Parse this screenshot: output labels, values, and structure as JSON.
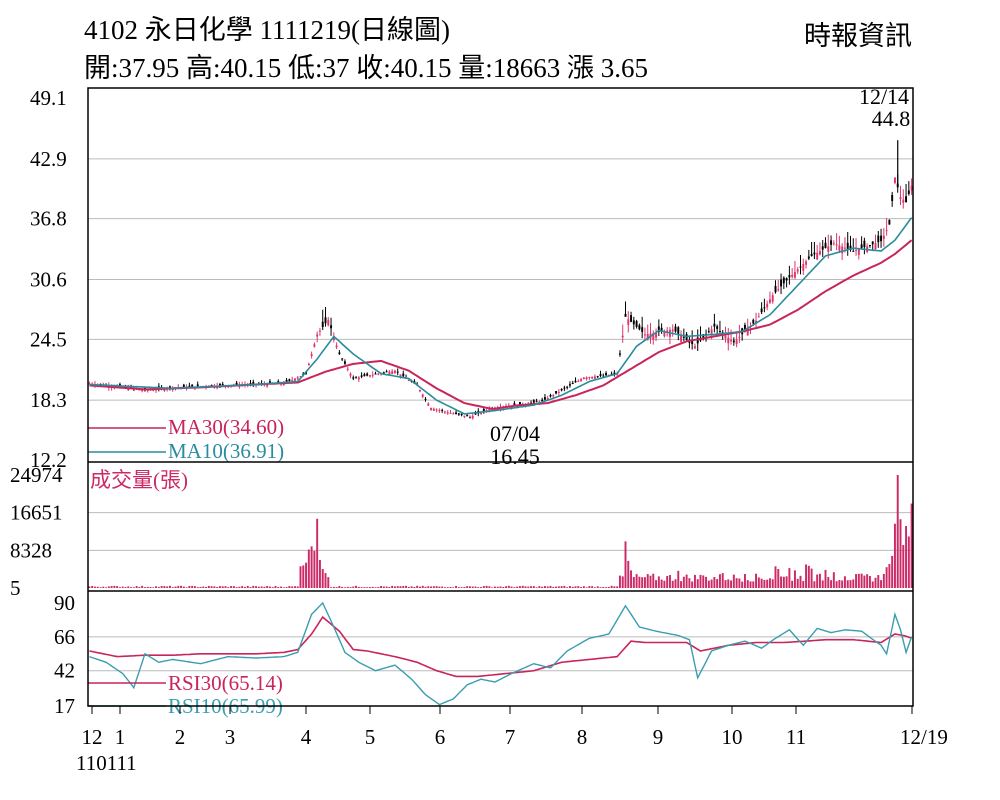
{
  "header": {
    "title": "4102  永日化學 1111219(日線圖)",
    "ohlc": "開:37.95 高:40.15 低:37 收:40.15 量:18663 漲 3.65",
    "source": "時報資訊"
  },
  "colors": {
    "up": "#e0356b",
    "down": "#000000",
    "ma30": "#c8255a",
    "ma10": "#2a8c9e",
    "volume": "#cc2a66",
    "rsi30": "#c8255a",
    "rsi10": "#3a9db0",
    "grid": "#bbbbbb"
  },
  "chart_data": [
    {
      "type": "candlestick",
      "panel": "price",
      "ylim": [
        12.2,
        49.1
      ],
      "yticks": [
        "49.1",
        "42.9",
        "36.8",
        "30.6",
        "24.5",
        "18.3",
        "12.2"
      ],
      "xticks": [
        "12",
        "1",
        "2",
        "3",
        "4",
        "5",
        "6",
        "7",
        "8",
        "9",
        "10",
        "11",
        "12/19"
      ],
      "xtick_sub": "110111",
      "annotations": [
        {
          "date": "12/14",
          "value": "44.8",
          "kind": "high"
        },
        {
          "date": "07/04",
          "value": "16.45",
          "kind": "low"
        }
      ],
      "legend": [
        {
          "label": "MA30(34.60)",
          "color": "#c8255a"
        },
        {
          "label": "MA10(36.91)",
          "color": "#2a8c9e"
        }
      ],
      "close_keypoints": [
        [
          0,
          20.0
        ],
        [
          10,
          19.7
        ],
        [
          20,
          19.3
        ],
        [
          30,
          19.6
        ],
        [
          45,
          19.8
        ],
        [
          60,
          19.9
        ],
        [
          70,
          20.0
        ],
        [
          78,
          21.0
        ],
        [
          82,
          25.0
        ],
        [
          86,
          26.5
        ],
        [
          90,
          23.0
        ],
        [
          95,
          20.5
        ],
        [
          100,
          20.8
        ],
        [
          110,
          21.3
        ],
        [
          118,
          19.8
        ],
        [
          123,
          17.5
        ],
        [
          130,
          17.0
        ],
        [
          137,
          16.6
        ],
        [
          144,
          17.4
        ],
        [
          150,
          17.7
        ],
        [
          157,
          17.9
        ],
        [
          163,
          18.2
        ],
        [
          170,
          19.3
        ],
        [
          178,
          20.6
        ],
        [
          185,
          20.8
        ],
        [
          190,
          21.0
        ],
        [
          193,
          26.8
        ],
        [
          200,
          25.0
        ],
        [
          210,
          25.5
        ],
        [
          218,
          23.8
        ],
        [
          225,
          25.8
        ],
        [
          232,
          24.2
        ],
        [
          240,
          26.4
        ],
        [
          246,
          29.0
        ],
        [
          252,
          30.8
        ],
        [
          260,
          33.0
        ],
        [
          268,
          34.3
        ],
        [
          275,
          33.5
        ],
        [
          280,
          34.0
        ],
        [
          285,
          34.5
        ],
        [
          288,
          36.2
        ],
        [
          290,
          41.0
        ],
        [
          292,
          39.0
        ],
        [
          294,
          38.5
        ],
        [
          296,
          40.15
        ]
      ],
      "ma30_keypoints": [
        [
          0,
          19.8
        ],
        [
          20,
          19.4
        ],
        [
          40,
          19.6
        ],
        [
          60,
          19.9
        ],
        [
          75,
          20.1
        ],
        [
          85,
          21.2
        ],
        [
          95,
          22.0
        ],
        [
          105,
          22.3
        ],
        [
          115,
          21.3
        ],
        [
          125,
          19.5
        ],
        [
          135,
          18.0
        ],
        [
          145,
          17.4
        ],
        [
          155,
          17.8
        ],
        [
          165,
          18.0
        ],
        [
          175,
          18.8
        ],
        [
          185,
          19.8
        ],
        [
          195,
          21.5
        ],
        [
          205,
          23.2
        ],
        [
          215,
          24.3
        ],
        [
          225,
          24.8
        ],
        [
          235,
          25.3
        ],
        [
          245,
          26.0
        ],
        [
          255,
          27.5
        ],
        [
          265,
          29.4
        ],
        [
          275,
          31.0
        ],
        [
          285,
          32.3
        ],
        [
          290,
          33.2
        ],
        [
          296,
          34.6
        ]
      ],
      "ma10_keypoints": [
        [
          0,
          19.9
        ],
        [
          30,
          19.5
        ],
        [
          60,
          19.9
        ],
        [
          75,
          20.2
        ],
        [
          82,
          22.5
        ],
        [
          88,
          24.8
        ],
        [
          95,
          23.0
        ],
        [
          105,
          21.0
        ],
        [
          115,
          20.5
        ],
        [
          125,
          18.3
        ],
        [
          135,
          16.9
        ],
        [
          145,
          17.2
        ],
        [
          160,
          17.8
        ],
        [
          170,
          18.8
        ],
        [
          180,
          20.2
        ],
        [
          190,
          21.0
        ],
        [
          197,
          23.8
        ],
        [
          205,
          25.4
        ],
        [
          215,
          24.8
        ],
        [
          225,
          25.0
        ],
        [
          235,
          25.3
        ],
        [
          245,
          27.0
        ],
        [
          255,
          30.0
        ],
        [
          265,
          33.0
        ],
        [
          275,
          33.8
        ],
        [
          285,
          33.5
        ],
        [
          290,
          34.6
        ],
        [
          296,
          36.91
        ]
      ]
    },
    {
      "type": "bar",
      "panel": "volume",
      "title": "成交量(張)",
      "ylim": [
        5,
        24974
      ],
      "yticks": [
        "24974",
        "16651",
        "8328",
        "5"
      ],
      "spikes": [
        [
          76,
          4800
        ],
        [
          77,
          5000
        ],
        [
          78,
          5600
        ],
        [
          79,
          8500
        ],
        [
          80,
          9200
        ],
        [
          81,
          8200
        ],
        [
          82,
          15300
        ],
        [
          83,
          6200
        ],
        [
          84,
          4200
        ],
        [
          85,
          3300
        ],
        [
          86,
          2400
        ],
        [
          193,
          10300
        ],
        [
          194,
          6000
        ],
        [
          195,
          3900
        ],
        [
          198,
          2500
        ],
        [
          212,
          3800
        ],
        [
          220,
          2900
        ],
        [
          228,
          3300
        ],
        [
          236,
          3100
        ],
        [
          247,
          4800
        ],
        [
          248,
          4200
        ],
        [
          252,
          4400
        ],
        [
          254,
          3900
        ],
        [
          258,
          5200
        ],
        [
          259,
          4900
        ],
        [
          260,
          4300
        ],
        [
          265,
          4000
        ],
        [
          268,
          3500
        ],
        [
          272,
          2600
        ],
        [
          286,
          3100
        ],
        [
          287,
          4600
        ],
        [
          288,
          5300
        ],
        [
          289,
          7100
        ],
        [
          290,
          14200
        ],
        [
          291,
          24974
        ],
        [
          292,
          15200
        ],
        [
          293,
          9500
        ],
        [
          294,
          13700
        ],
        [
          295,
          11400
        ],
        [
          296,
          18663
        ]
      ]
    },
    {
      "type": "line",
      "panel": "rsi",
      "ylim": [
        17,
        90
      ],
      "yticks": [
        "90",
        "66",
        "42",
        "17"
      ],
      "legend": [
        {
          "label": "RSI30(65.14)",
          "color": "#c8255a"
        },
        {
          "label": "RSI10(65.99)",
          "color": "#3a9db0"
        }
      ],
      "rsi30_keypoints": [
        [
          0,
          56
        ],
        [
          10,
          52
        ],
        [
          20,
          53
        ],
        [
          30,
          53
        ],
        [
          40,
          54
        ],
        [
          50,
          54
        ],
        [
          60,
          54
        ],
        [
          70,
          55
        ],
        [
          75,
          57
        ],
        [
          80,
          68
        ],
        [
          84,
          80
        ],
        [
          90,
          70
        ],
        [
          95,
          57
        ],
        [
          100,
          56
        ],
        [
          110,
          52
        ],
        [
          118,
          48
        ],
        [
          125,
          42
        ],
        [
          132,
          38
        ],
        [
          140,
          38
        ],
        [
          150,
          40
        ],
        [
          160,
          42
        ],
        [
          170,
          48
        ],
        [
          180,
          50
        ],
        [
          190,
          52
        ],
        [
          195,
          63
        ],
        [
          200,
          62
        ],
        [
          210,
          62
        ],
        [
          215,
          62
        ],
        [
          220,
          56
        ],
        [
          230,
          60
        ],
        [
          240,
          62
        ],
        [
          250,
          62
        ],
        [
          258,
          63
        ],
        [
          265,
          64
        ],
        [
          275,
          64
        ],
        [
          285,
          62
        ],
        [
          290,
          68
        ],
        [
          293,
          67
        ],
        [
          296,
          65.14
        ]
      ],
      "rsi10_keypoints": [
        [
          0,
          52
        ],
        [
          6,
          48
        ],
        [
          12,
          40
        ],
        [
          16,
          30
        ],
        [
          20,
          54
        ],
        [
          25,
          48
        ],
        [
          30,
          50
        ],
        [
          40,
          47
        ],
        [
          50,
          52
        ],
        [
          60,
          51
        ],
        [
          70,
          52
        ],
        [
          75,
          55
        ],
        [
          80,
          82
        ],
        [
          84,
          90
        ],
        [
          88,
          73
        ],
        [
          92,
          55
        ],
        [
          97,
          48
        ],
        [
          103,
          42
        ],
        [
          110,
          46
        ],
        [
          116,
          36
        ],
        [
          121,
          25
        ],
        [
          126,
          18
        ],
        [
          131,
          22
        ],
        [
          136,
          32
        ],
        [
          141,
          36
        ],
        [
          146,
          34
        ],
        [
          152,
          40
        ],
        [
          160,
          47
        ],
        [
          166,
          44
        ],
        [
          172,
          56
        ],
        [
          180,
          65
        ],
        [
          187,
          68
        ],
        [
          193,
          88
        ],
        [
          198,
          73
        ],
        [
          204,
          70
        ],
        [
          212,
          67
        ],
        [
          216,
          64
        ],
        [
          219,
          37
        ],
        [
          224,
          56
        ],
        [
          230,
          60
        ],
        [
          236,
          63
        ],
        [
          242,
          58
        ],
        [
          247,
          65
        ],
        [
          252,
          71
        ],
        [
          257,
          60
        ],
        [
          262,
          72
        ],
        [
          267,
          69
        ],
        [
          272,
          71
        ],
        [
          278,
          70
        ],
        [
          285,
          60
        ],
        [
          287,
          54
        ],
        [
          290,
          82
        ],
        [
          292,
          71
        ],
        [
          294,
          55
        ],
        [
          296,
          65.99
        ]
      ]
    }
  ]
}
